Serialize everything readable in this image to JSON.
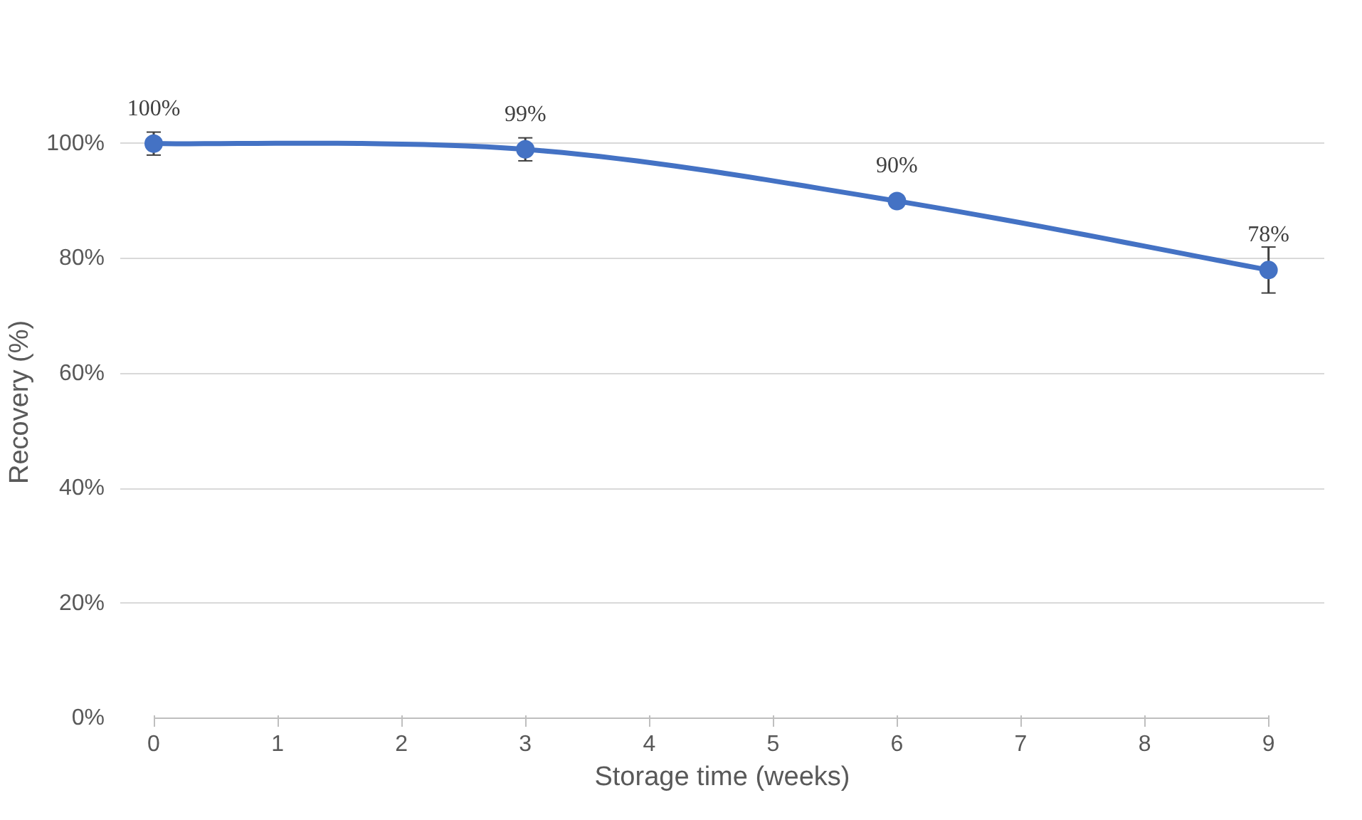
{
  "chart_data": {
    "type": "line",
    "xlabel": "Storage time (weeks)",
    "ylabel": "Recovery (%)",
    "x": [
      0,
      3,
      6,
      9
    ],
    "series": [
      {
        "color": "#4472c4",
        "values": [
          100,
          99,
          90,
          78
        ],
        "errors": [
          2,
          2,
          null,
          4
        ],
        "value_labels": [
          "100%",
          "99%",
          "90%",
          "78%"
        ]
      }
    ],
    "xlim": [
      0,
      9
    ],
    "xticks": [
      0,
      1,
      2,
      3,
      4,
      5,
      6,
      7,
      8,
      9
    ],
    "ylim": [
      0,
      100
    ],
    "yticks": [
      {
        "value": 0,
        "label": "0%"
      },
      {
        "value": 20,
        "label": "20%"
      },
      {
        "value": 40,
        "label": "40%"
      },
      {
        "value": 60,
        "label": "60%"
      },
      {
        "value": 80,
        "label": "80%"
      },
      {
        "value": 100,
        "label": "100%"
      }
    ],
    "grid": "y",
    "marker": "circle",
    "line_style": "solid"
  }
}
